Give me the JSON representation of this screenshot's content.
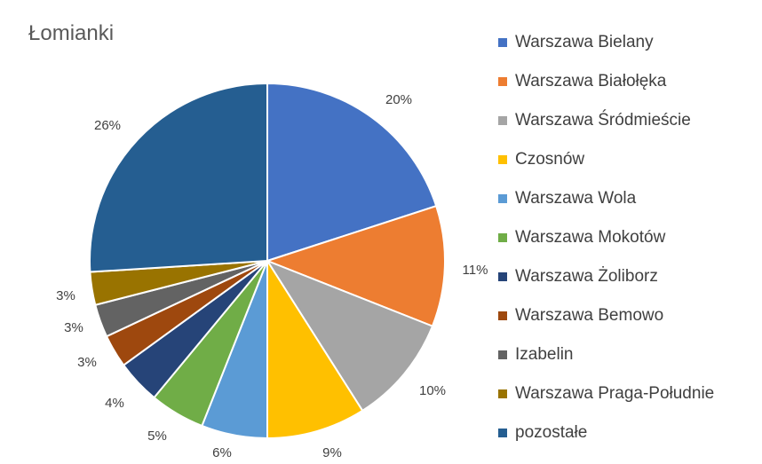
{
  "chart_data": {
    "type": "pie",
    "title": "Łomianki",
    "categories": [
      "Warszawa Bielany",
      "Warszawa Białołęka",
      "Warszawa Śródmieście",
      "Czosnów",
      "Warszawa Wola",
      "Warszawa Mokotów",
      "Warszawa Żoliborz",
      "Warszawa Bemowo",
      "Izabelin",
      "Warszawa Praga-Południe",
      "pozostałe"
    ],
    "values": [
      20,
      11,
      10,
      9,
      6,
      5,
      4,
      3,
      3,
      3,
      26
    ],
    "value_labels": [
      "20%",
      "11%",
      "10%",
      "9%",
      "6%",
      "5%",
      "4%",
      "3%",
      "3%",
      "3%",
      "26%"
    ],
    "colors": [
      "#4472C4",
      "#ED7D31",
      "#A5A5A5",
      "#FFC000",
      "#5B9BD5",
      "#70AD47",
      "#264478",
      "#9E480E",
      "#636363",
      "#997300",
      "#255E91"
    ],
    "legend_position": "right",
    "start_angle": "12 o'clock, clockwise"
  }
}
